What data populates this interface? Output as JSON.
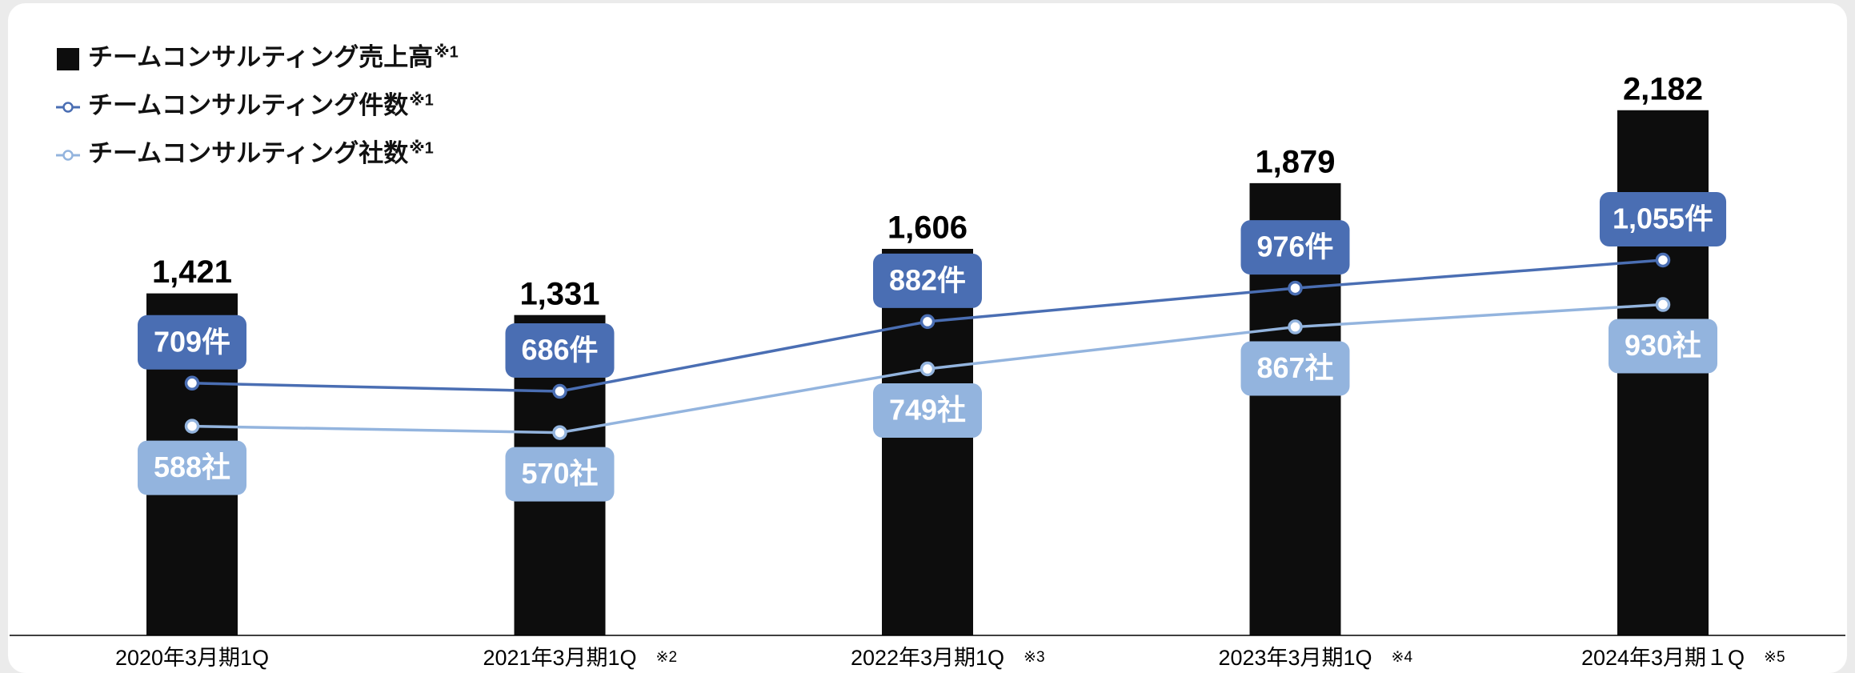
{
  "chart_data": {
    "type": "bar",
    "categories": [
      "2020年3月期1Q",
      "2021年3月期1Q",
      "2022年3月期1Q",
      "2023年3月期1Q",
      "2024年3月期１Q"
    ],
    "category_notes": [
      null,
      "※2",
      "※3",
      "※4",
      "※5"
    ],
    "ylim": [
      0,
      2640
    ],
    "y2lim": [
      0,
      1786
    ],
    "series": [
      {
        "name": "チームコンサルティング売上高",
        "name_note": "※1",
        "type": "bar",
        "color": "#0d0d0d",
        "values": [
          1421,
          1331,
          1606,
          1879,
          2182
        ],
        "value_labels": [
          "1,421",
          "1,331",
          "1,606",
          "1,879",
          "2,182"
        ]
      },
      {
        "name": "チームコンサルティング件数",
        "name_note": "※1",
        "type": "line",
        "axis": "y2",
        "color": "#4a6eb3",
        "values": [
          709,
          686,
          882,
          976,
          1055
        ],
        "value_labels": [
          "709件",
          "686件",
          "882件",
          "976件",
          "1,055件"
        ]
      },
      {
        "name": "チームコンサルティング社数",
        "name_note": "※1",
        "type": "line",
        "axis": "y2",
        "color": "#93b4de",
        "values": [
          588,
          570,
          749,
          867,
          930
        ],
        "value_labels": [
          "588社",
          "570社",
          "749社",
          "867社",
          "930社"
        ]
      }
    ]
  }
}
